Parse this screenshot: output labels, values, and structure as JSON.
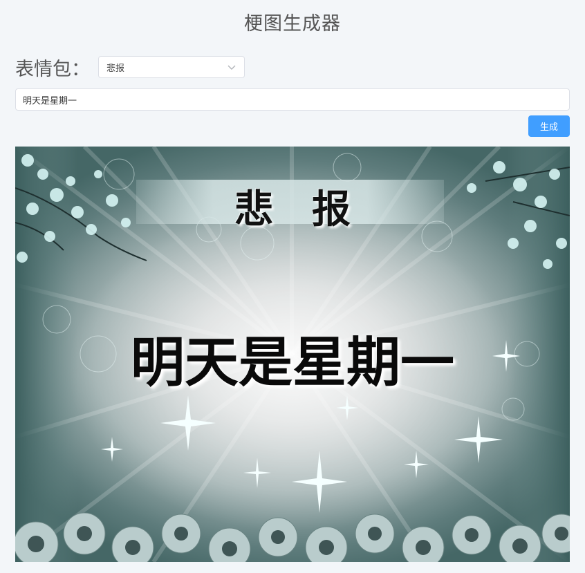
{
  "app": {
    "title": "梗图生成器"
  },
  "form": {
    "meme_label": "表情包：",
    "meme_select": {
      "selected": "悲报"
    },
    "text_input": {
      "value": "明天是星期一",
      "placeholder": ""
    },
    "generate_label": "生成"
  },
  "meme": {
    "banner_text": "悲报",
    "main_text": "明天是星期一"
  },
  "colors": {
    "background": "#f3f6f9",
    "primary_button": "#409eff",
    "meme_teal": "#456766"
  },
  "icons": {
    "select_arrow": "chevron-down-icon"
  }
}
